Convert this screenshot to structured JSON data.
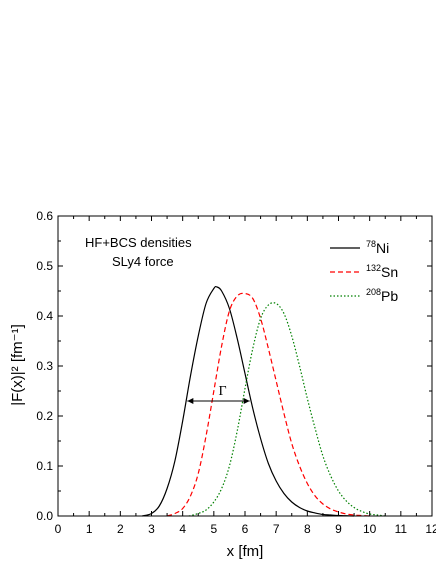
{
  "chart_data": {
    "type": "line",
    "xlabel": "x [fm]",
    "ylabel": "|F(x)|² [fm⁻¹]",
    "xlim": [
      0,
      12
    ],
    "ylim": [
      0,
      0.6
    ],
    "xticks": [
      0,
      1,
      2,
      3,
      4,
      5,
      6,
      7,
      8,
      9,
      10,
      11,
      12
    ],
    "yticks": [
      0.0,
      0.1,
      0.2,
      0.3,
      0.4,
      0.5,
      0.6
    ],
    "ytick_labels": [
      "0.0",
      "0.1",
      "0.2",
      "0.3",
      "0.4",
      "0.5",
      "0.6"
    ],
    "grid": false,
    "legend_position": "top-right",
    "annotations": {
      "line1": "HF+BCS densities",
      "line2": "SLy4 force",
      "width_symbol": "Γ",
      "width_y": 0.23,
      "width_x_start": 4.15,
      "width_x_end": 6.15
    },
    "series": [
      {
        "name_sup": "78",
        "name_el": "Ni",
        "color": "#000000",
        "style": "solid",
        "x": [
          2.7,
          3.0,
          3.25,
          3.5,
          3.75,
          4.0,
          4.25,
          4.5,
          4.75,
          5.0,
          5.1,
          5.25,
          5.5,
          5.75,
          6.0,
          6.25,
          6.5,
          6.75,
          7.0,
          7.25,
          7.5,
          7.75,
          8.0,
          8.25,
          8.5,
          8.75,
          9.0,
          9.25,
          9.5
        ],
        "y": [
          0.0,
          0.005,
          0.02,
          0.055,
          0.11,
          0.19,
          0.28,
          0.36,
          0.425,
          0.455,
          0.458,
          0.45,
          0.415,
          0.355,
          0.285,
          0.215,
          0.155,
          0.105,
          0.07,
          0.045,
          0.028,
          0.017,
          0.01,
          0.006,
          0.003,
          0.002,
          0.001,
          0.0005,
          0.0
        ]
      },
      {
        "name_sup": "132",
        "name_el": "Sn",
        "color": "#ff0000",
        "style": "dashed",
        "x": [
          3.5,
          3.75,
          4.0,
          4.25,
          4.5,
          4.75,
          5.0,
          5.25,
          5.5,
          5.75,
          6.0,
          6.25,
          6.5,
          6.75,
          7.0,
          7.25,
          7.5,
          7.75,
          8.0,
          8.25,
          8.5,
          8.75,
          9.0,
          9.25,
          9.5,
          9.75,
          10.0
        ],
        "y": [
          0.0,
          0.005,
          0.015,
          0.04,
          0.085,
          0.16,
          0.25,
          0.34,
          0.41,
          0.44,
          0.445,
          0.435,
          0.395,
          0.335,
          0.27,
          0.205,
          0.145,
          0.1,
          0.065,
          0.04,
          0.024,
          0.014,
          0.008,
          0.004,
          0.002,
          0.001,
          0.0
        ]
      },
      {
        "name_sup": "208",
        "name_el": "Pb",
        "color": "#008000",
        "style": "dotted",
        "x": [
          4.2,
          4.5,
          4.75,
          5.0,
          5.25,
          5.5,
          5.75,
          6.0,
          6.25,
          6.5,
          6.75,
          7.0,
          7.25,
          7.5,
          7.75,
          8.0,
          8.25,
          8.5,
          8.75,
          9.0,
          9.25,
          9.5,
          9.75,
          10.0,
          10.25,
          10.5
        ],
        "y": [
          0.0,
          0.005,
          0.012,
          0.028,
          0.055,
          0.1,
          0.17,
          0.255,
          0.335,
          0.395,
          0.422,
          0.425,
          0.405,
          0.36,
          0.3,
          0.235,
          0.175,
          0.12,
          0.08,
          0.05,
          0.03,
          0.017,
          0.009,
          0.004,
          0.002,
          0.0
        ]
      }
    ]
  }
}
